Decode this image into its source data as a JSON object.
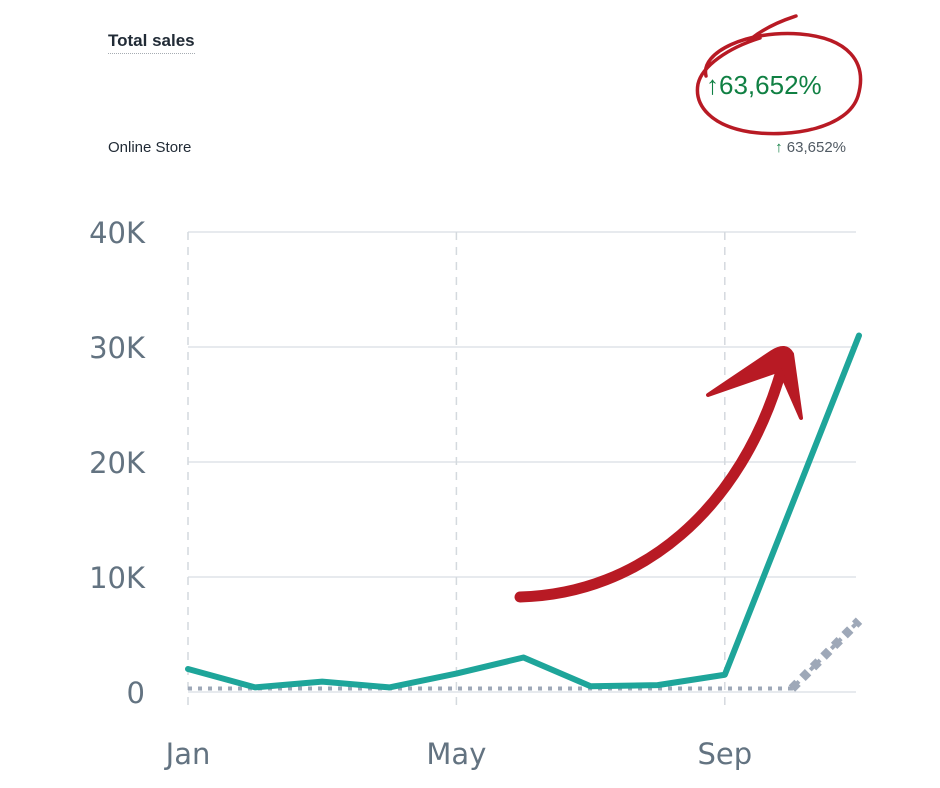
{
  "header": {
    "title": "Total sales",
    "change": "↑63,652%"
  },
  "breakdown": {
    "label": "Online Store",
    "arrow": "↑",
    "change": "63,652%"
  },
  "colors": {
    "series_current": "#1ea59a",
    "series_previous": "#9ea8b8",
    "positive": "#108043",
    "annotation": "#b81a24"
  },
  "annotation": {
    "type": "hand-drawn red circle around the percentage and curved upward arrow"
  },
  "chart_data": {
    "type": "line",
    "x_ticks": [
      "Jan",
      "May",
      "Sep"
    ],
    "y_ticks": [
      "0",
      "10K",
      "20K",
      "30K",
      "40K"
    ],
    "ylim": [
      0,
      40000
    ],
    "grid": true,
    "series": [
      {
        "key": "current",
        "style": "solid",
        "points": [
          {
            "month": 1,
            "value": 2000
          },
          {
            "month": 2,
            "value": 400
          },
          {
            "month": 3,
            "value": 900
          },
          {
            "month": 4,
            "value": 400
          },
          {
            "month": 5,
            "value": 1600
          },
          {
            "month": 6,
            "value": 3000
          },
          {
            "month": 7,
            "value": 500
          },
          {
            "month": 8,
            "value": 600
          },
          {
            "month": 9,
            "value": 1500
          },
          {
            "month": 11,
            "value": 31000
          }
        ]
      },
      {
        "key": "previous",
        "style": "dotted",
        "points": [
          {
            "month": 1,
            "value": 300
          },
          {
            "month": 10,
            "value": 300
          },
          {
            "month": 11,
            "value": 6200
          }
        ]
      }
    ]
  }
}
